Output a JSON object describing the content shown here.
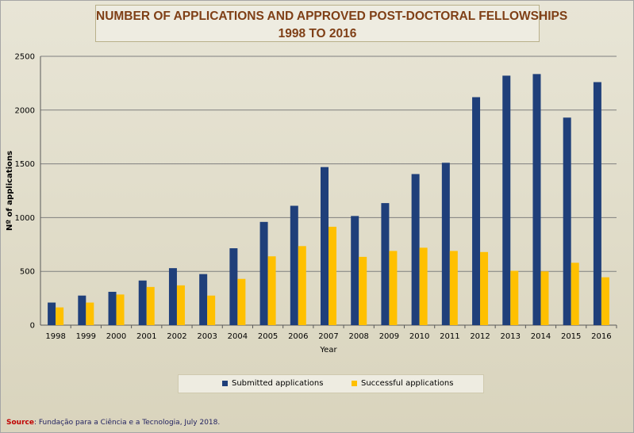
{
  "title_line1": "NUMBER OF APPLICATIONS AND APPROVED POST-DOCTORAL FELLOWSHIPS",
  "title_line2": "1998 TO 2016",
  "source_label": "Source",
  "source_text": ": Fundação para a Ciência e a Tecnologia, July 2018.",
  "colors": {
    "submitted": "#1f3f7a",
    "successful": "#ffc000",
    "grid": "#7f7f7f"
  },
  "chart_data": {
    "type": "bar",
    "title": "NUMBER OF APPLICATIONS AND APPROVED POST-DOCTORAL FELLOWSHIPS 1998 TO 2016",
    "xlabel": "Year",
    "ylabel": "Nº of applications",
    "ylim": [
      0,
      2500
    ],
    "yticks": [
      0,
      500,
      1000,
      1500,
      2000,
      2500
    ],
    "grid": true,
    "legend_position": "bottom",
    "categories": [
      "1998",
      "1999",
      "2000",
      "2001",
      "2002",
      "2003",
      "2004",
      "2005",
      "2006",
      "2007",
      "2008",
      "2009",
      "2010",
      "2011",
      "2012",
      "2013",
      "2014",
      "2015",
      "2016"
    ],
    "series": [
      {
        "name": "Submitted applications",
        "values": [
          210,
          275,
          310,
          415,
          530,
          475,
          715,
          960,
          1110,
          1470,
          1015,
          1135,
          1405,
          1510,
          2120,
          2320,
          2335,
          1930,
          2260
        ]
      },
      {
        "name": "Successful applications",
        "values": [
          165,
          210,
          285,
          355,
          370,
          275,
          430,
          640,
          735,
          915,
          635,
          690,
          720,
          690,
          680,
          505,
          500,
          580,
          445
        ]
      }
    ]
  }
}
